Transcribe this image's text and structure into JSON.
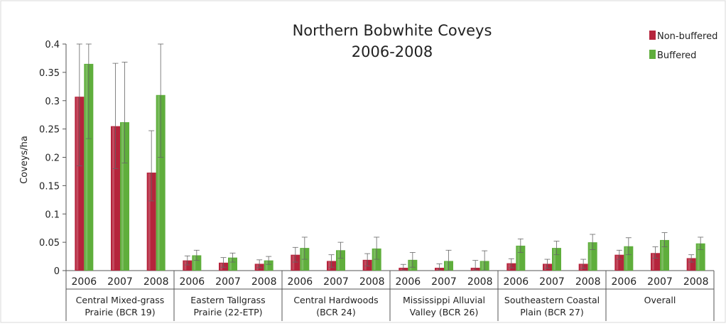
{
  "chart_data": {
    "type": "bar",
    "title_line1": "Northern Bobwhite Coveys",
    "title_line2": "2006-2008",
    "ylabel": "Coveys/ha",
    "ylim": [
      0,
      0.4
    ],
    "yticks": [
      "0",
      "0.05",
      "0.1",
      "0.15",
      "0.2",
      "0.25",
      "0.3",
      "0.35",
      "0.4"
    ],
    "ytick_values": [
      0,
      0.05,
      0.1,
      0.15,
      0.2,
      0.25,
      0.3,
      0.35,
      0.4
    ],
    "legend": {
      "placement": "top-right",
      "entries": [
        "Non-buffered",
        "Buffered"
      ]
    },
    "colors": {
      "Non-buffered": "#b5243c",
      "Buffered": "#5fae3c"
    },
    "groups": [
      {
        "line1": "Central Mixed-grass",
        "line2": "Prairie (BCR 19)"
      },
      {
        "line1": "Eastern Tallgrass",
        "line2": "Prairie (22-ETP)"
      },
      {
        "line1": "Central Hardwoods",
        "line2": "(BCR 24)"
      },
      {
        "line1": "Mississippi Alluvial",
        "line2": "Valley (BCR 26)"
      },
      {
        "line1": "Southeastern Coastal",
        "line2": "Plain (BCR 27)"
      },
      {
        "line1": "Overall",
        "line2": ""
      }
    ],
    "years": [
      "2006",
      "2007",
      "2008"
    ],
    "series": [
      {
        "name": "Non-buffered",
        "values": [
          0.307,
          0.255,
          0.173,
          0.018,
          0.014,
          0.012,
          0.028,
          0.017,
          0.019,
          0.005,
          0.005,
          0.005,
          0.013,
          0.012,
          0.012,
          0.028,
          0.031,
          0.022
        ],
        "err_low": [
          0.185,
          0.18,
          0.123,
          0.01,
          0.006,
          0.005,
          0.015,
          0.006,
          0.008,
          0.0,
          0.0,
          0.0,
          0.005,
          0.004,
          0.004,
          0.02,
          0.022,
          0.015
        ],
        "err_high": [
          0.4,
          0.366,
          0.247,
          0.026,
          0.023,
          0.019,
          0.041,
          0.028,
          0.03,
          0.011,
          0.012,
          0.018,
          0.021,
          0.02,
          0.02,
          0.036,
          0.042,
          0.028
        ]
      },
      {
        "name": "Buffered",
        "values": [
          0.365,
          0.262,
          0.31,
          0.027,
          0.023,
          0.018,
          0.04,
          0.036,
          0.039,
          0.019,
          0.017,
          0.017,
          0.044,
          0.04,
          0.05,
          0.043,
          0.054,
          0.048
        ],
        "err_low": [
          0.233,
          0.19,
          0.2,
          0.018,
          0.015,
          0.011,
          0.02,
          0.022,
          0.02,
          0.006,
          0.0,
          0.0,
          0.032,
          0.028,
          0.037,
          0.028,
          0.042,
          0.037
        ],
        "err_high": [
          0.4,
          0.368,
          0.4,
          0.036,
          0.031,
          0.025,
          0.059,
          0.05,
          0.059,
          0.032,
          0.036,
          0.035,
          0.056,
          0.052,
          0.064,
          0.058,
          0.067,
          0.059
        ]
      }
    ]
  }
}
